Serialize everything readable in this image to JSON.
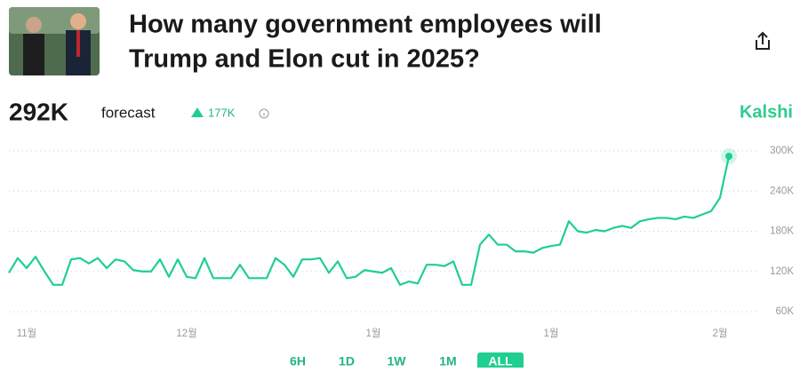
{
  "header": {
    "title_lines": [
      "How many government employees will",
      "Trump and Elon cut in 2025?"
    ]
  },
  "stats": {
    "value": "292K",
    "label": "forecast",
    "change": "177K"
  },
  "brand": "Kalshi",
  "chart_data": {
    "type": "line",
    "color": "#1fcf8f",
    "grid": true,
    "categories": [
      null,
      null,
      "11월",
      null,
      null,
      null,
      null,
      null,
      null,
      null,
      null,
      null,
      null,
      null,
      null,
      null,
      null,
      null,
      null,
      null,
      "12월",
      null,
      null,
      null,
      null,
      null,
      null,
      null,
      null,
      null,
      null,
      null,
      null,
      null,
      null,
      null,
      null,
      null,
      null,
      null,
      null,
      "1월",
      null,
      null,
      null,
      null,
      null,
      null,
      null,
      null,
      null,
      null,
      null,
      null,
      null,
      null,
      null,
      null,
      null,
      null,
      null,
      "1월",
      null,
      null,
      null,
      null,
      null,
      null,
      null,
      null,
      null,
      null,
      null,
      null,
      null,
      null,
      null,
      null,
      null,
      null,
      "2월",
      null
    ],
    "values": [
      118000,
      140000,
      125000,
      142000,
      120000,
      100000,
      100000,
      138000,
      140000,
      132000,
      140000,
      125000,
      138000,
      135000,
      122000,
      120000,
      120000,
      138000,
      112000,
      138000,
      112000,
      110000,
      140000,
      110000,
      110000,
      110000,
      130000,
      110000,
      110000,
      110000,
      140000,
      130000,
      112000,
      138000,
      138000,
      140000,
      118000,
      135000,
      110000,
      112000,
      122000,
      120000,
      118000,
      125000,
      100000,
      105000,
      102000,
      130000,
      130000,
      128000,
      135000,
      100000,
      100000,
      160000,
      175000,
      160000,
      160000,
      150000,
      150000,
      148000,
      155000,
      158000,
      160000,
      195000,
      180000,
      178000,
      182000,
      180000,
      185000,
      188000,
      185000,
      195000,
      198000,
      200000,
      200000,
      198000,
      202000,
      200000,
      205000,
      210000,
      230000,
      292000
    ],
    "ylim": [
      60000,
      300000
    ],
    "yticks": [
      {
        "value": 60000,
        "label": "60K"
      },
      {
        "value": 120000,
        "label": "120K"
      },
      {
        "value": 180000,
        "label": "180K"
      },
      {
        "value": 240000,
        "label": "240K"
      },
      {
        "value": 300000,
        "label": "300K"
      }
    ]
  },
  "range_buttons": [
    "6H",
    "1D",
    "1W",
    "1M",
    "ALL"
  ],
  "selected_button": 4
}
